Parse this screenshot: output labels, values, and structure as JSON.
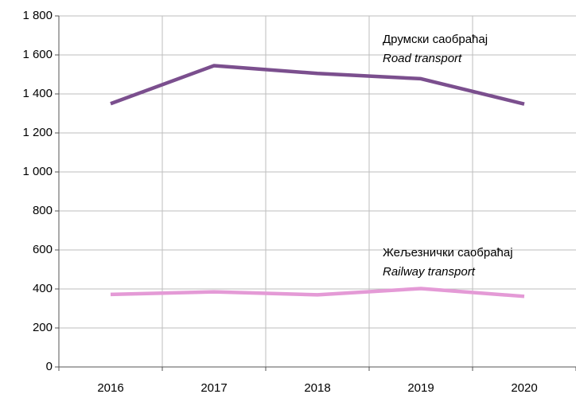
{
  "chart_data": {
    "type": "line",
    "categories": [
      "2016",
      "2017",
      "2018",
      "2019",
      "2020"
    ],
    "series": [
      {
        "name": "Друмски саобраћај",
        "name_en": "Road transport",
        "color": "#7b4f8e",
        "values": [
          1350,
          1545,
          1505,
          1478,
          1348
        ]
      },
      {
        "name": "Жељезнички саобраћај",
        "name_en": "Railway transport",
        "color": "#e49ad6",
        "values": [
          372,
          385,
          370,
          402,
          362
        ]
      }
    ],
    "ylim": [
      0,
      1800
    ],
    "yticks": [
      0,
      200,
      400,
      600,
      800,
      {
        "value": 1000,
        "label": "1 000"
      },
      {
        "value": 1200,
        "label": "1 200"
      },
      {
        "value": 1400,
        "label": "1 400"
      },
      {
        "value": 1600,
        "label": "1 600"
      },
      {
        "value": 1800,
        "label": "1 800"
      }
    ],
    "grid": true
  }
}
